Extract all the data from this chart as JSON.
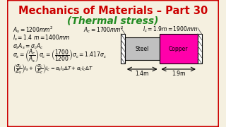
{
  "bg_color": "#f5f0e0",
  "border_color": "#cc0000",
  "title1": "Mechanics of Materials – Part 30",
  "title2": "(Thermal stress)",
  "title1_color": "#cc0000",
  "title2_color": "#228B22",
  "eq1": "$A_s = 1200mm^2$",
  "eq2": "$A_c = 1700mm^2$",
  "eq3": "$l_c = 1.9m = 1900mm$",
  "eq4": "$l_s = 1.4\\ m = 1400mm$",
  "eq5": "$\\sigma_s A_s = \\sigma_c A_c$",
  "eq6": "$\\sigma_s = \\left(\\dfrac{A_c}{A_s}\\right)\\sigma_c = \\left(\\dfrac{1700}{1200}\\right)\\sigma_c = 1.417\\sigma_c$",
  "eq7": "$\\left(\\dfrac{\\sigma_s}{E_s}\\right)l_s + \\left(\\dfrac{\\sigma_c}{E_c}\\right)l_c = \\alpha_s l_s \\Delta T + \\alpha_c l_c \\Delta T$",
  "steel_color": "#c0c0c0",
  "copper_color": "#ff00aa",
  "label_steel": "Steel",
  "label_copper": "Copper",
  "dim1": "1.4m",
  "dim2": "1.9m",
  "hatch_color": "#555555"
}
